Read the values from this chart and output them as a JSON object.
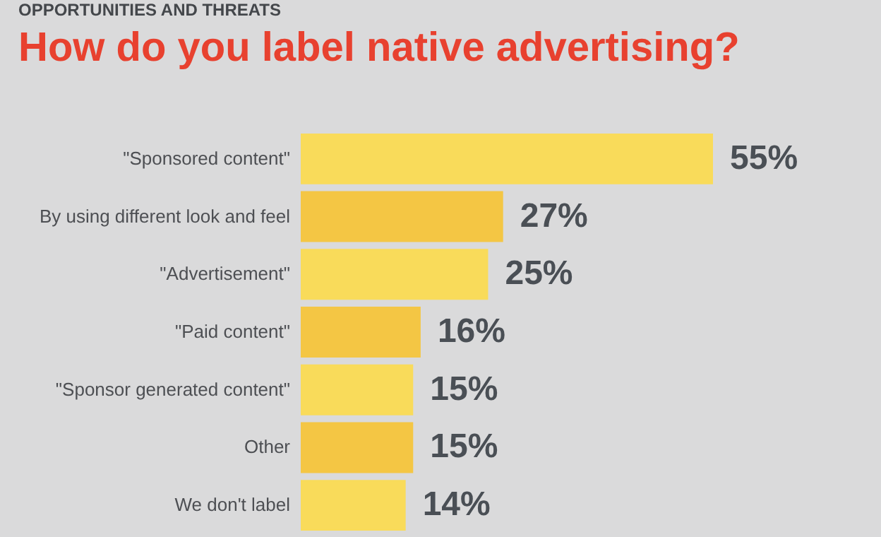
{
  "chart_data": {
    "type": "bar",
    "orientation": "horizontal",
    "subtitle": "OPPORTUNITIES AND THREATS",
    "title": "How do you label native advertising?",
    "categories": [
      "\"Sponsored content\"",
      "By using different look and feel",
      "\"Advertisement\"",
      "\"Paid content\"",
      "\"Sponsor generated content\"",
      "Other",
      "We don't label"
    ],
    "values": [
      55,
      27,
      25,
      16,
      15,
      15,
      14
    ],
    "value_labels": [
      "55%",
      "27%",
      "25%",
      "16%",
      "15%",
      "15%",
      "14%"
    ],
    "colors": [
      "#f9db5a",
      "#f4c644",
      "#f9db5a",
      "#f4c644",
      "#f9db5a",
      "#f4c644",
      "#f9db5a"
    ]
  }
}
